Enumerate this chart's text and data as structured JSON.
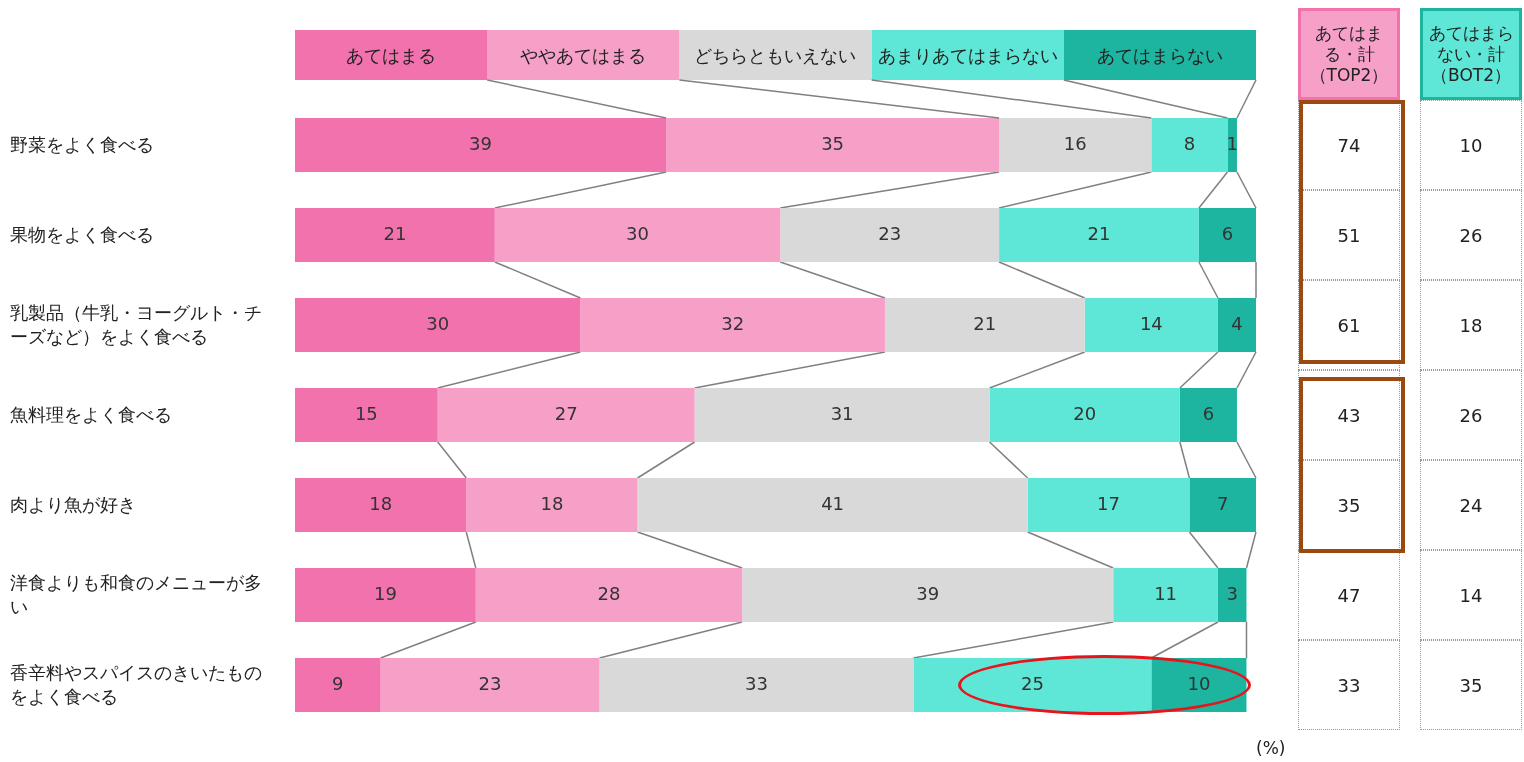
{
  "chart_data": {
    "type": "bar",
    "orientation": "horizontal",
    "stacked": true,
    "data_labels": true,
    "legend": "top",
    "tick_labels": "y",
    "xlim": [
      0,
      101
    ],
    "categories": [
      "野菜をよく食べる",
      "果物をよく食べる",
      "乳製品（牛乳・ヨーグルト・チーズなど）をよく食べる",
      "魚料理をよく食べる",
      "肉より魚が好き",
      "洋食よりも和食のメニューが多い",
      "香辛料やスパイスのきいたものをよく食べる"
    ],
    "series": [
      {
        "name": "あてはまる",
        "color": "#f272ae",
        "values": [
          39,
          21,
          30,
          15,
          18,
          19,
          9
        ]
      },
      {
        "name": "ややあてはまる",
        "color": "#f6a0c8",
        "values": [
          35,
          30,
          32,
          27,
          18,
          28,
          23
        ]
      },
      {
        "name": "どちらともいえない",
        "color": "#d9d9d9",
        "values": [
          16,
          23,
          21,
          31,
          41,
          39,
          33
        ]
      },
      {
        "name": "あまりあてはまらない",
        "color": "#5ee6d6",
        "values": [
          8,
          21,
          14,
          20,
          17,
          11,
          25
        ]
      },
      {
        "name": "あてはまらない",
        "color": "#1eb5a0",
        "values": [
          1,
          6,
          4,
          6,
          7,
          3,
          10
        ]
      }
    ],
    "annotations": [
      "あてはまる・計（TOP2）",
      "あてはまらない・計（BOT2）",
      "(%)",
      "74",
      "10",
      "51",
      "26",
      "61",
      "18",
      "43",
      "26",
      "35",
      "24",
      "47",
      "14",
      "33",
      "35"
    ]
  }
}
